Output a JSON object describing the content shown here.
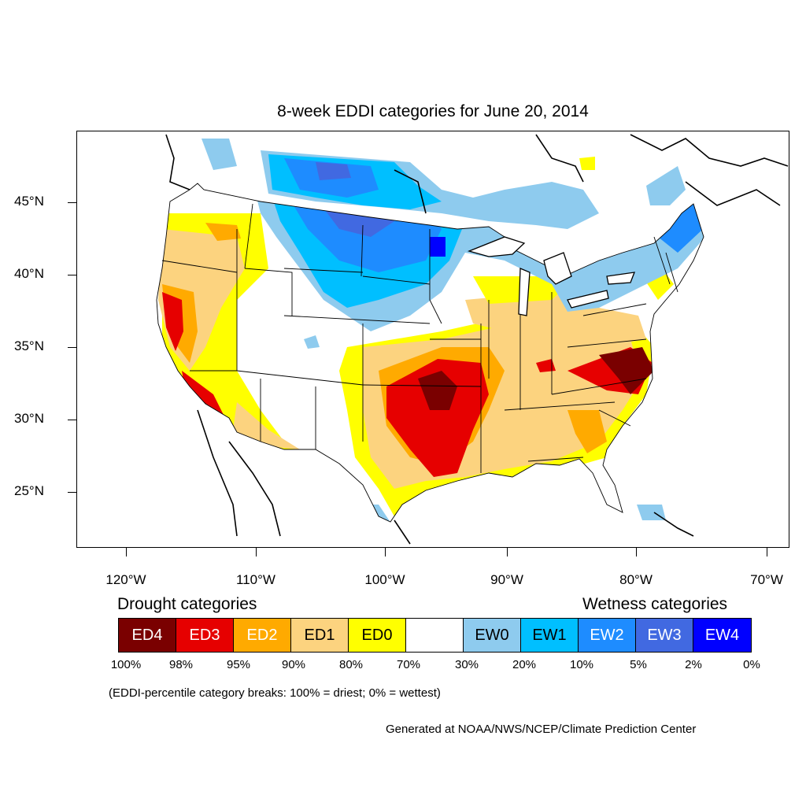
{
  "title": "8-week EDDI categories for June 20, 2014",
  "lat_labels": [
    "45°N",
    "40°N",
    "35°N",
    "30°N",
    "25°N"
  ],
  "lon_labels": [
    "120°W",
    "110°W",
    "100°W",
    "90°W",
    "80°W",
    "70°W"
  ],
  "drought_heading": "Drought categories",
  "wetness_heading": "Wetness categories",
  "legend": [
    {
      "label": "ED4",
      "color": "#7a0000",
      "text_color": "#ffffff"
    },
    {
      "label": "ED3",
      "color": "#e60000",
      "text_color": "#ffffff"
    },
    {
      "label": "ED2",
      "color": "#ffaa00",
      "text_color": "#ffffff"
    },
    {
      "label": "ED1",
      "color": "#fcd37f",
      "text_color": "#000000"
    },
    {
      "label": "ED0",
      "color": "#ffff00",
      "text_color": "#000000"
    },
    {
      "label": "",
      "color": "#ffffff",
      "text_color": "#000000"
    },
    {
      "label": "EW0",
      "color": "#8ecbee",
      "text_color": "#000000"
    },
    {
      "label": "EW1",
      "color": "#00bfff",
      "text_color": "#000000"
    },
    {
      "label": "EW2",
      "color": "#1e8cff",
      "text_color": "#ffffff"
    },
    {
      "label": "EW3",
      "color": "#4169e1",
      "text_color": "#ffffff"
    },
    {
      "label": "EW4",
      "color": "#0000ff",
      "text_color": "#ffffff"
    }
  ],
  "breaks": [
    "100%",
    "98%",
    "95%",
    "90%",
    "80%",
    "70%",
    "30%",
    "20%",
    "10%",
    "5%",
    "2%",
    "0%"
  ],
  "note": "(EDDI-percentile category breaks: 100% = driest; 0% = wettest)",
  "credit": "Generated at NOAA/NWS/NCEP/Climate Prediction Center"
}
